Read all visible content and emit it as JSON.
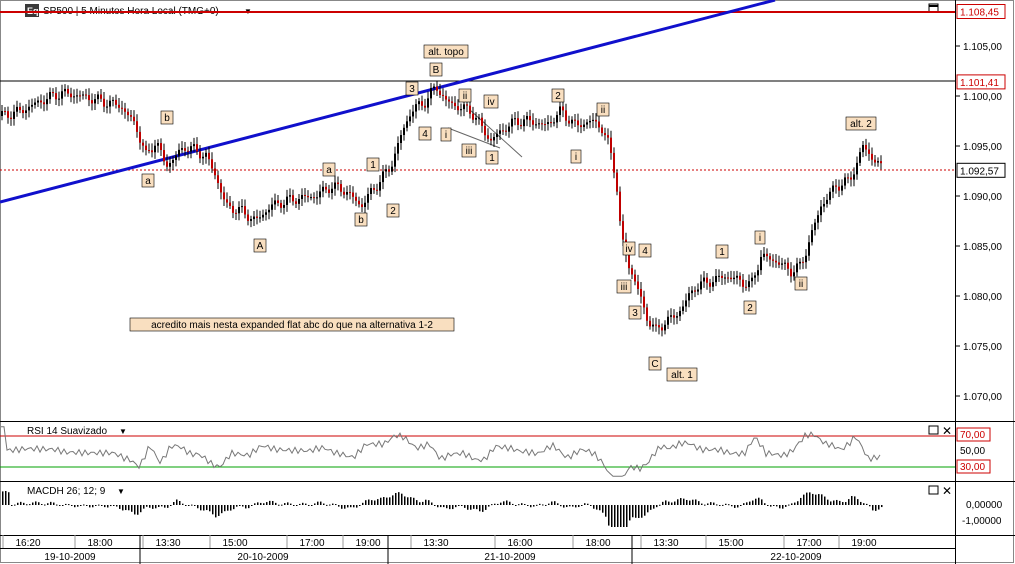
{
  "header": {
    "icon_label": "Eq",
    "title": "SP500 | 5 Minutos Hora Local (TMG+0)"
  },
  "chart_data": [
    {
      "type": "candlestick",
      "title": "SP500 | 5 Minutos Hora Local (TMG+0)",
      "y_ticks": [
        "1,105,00",
        "1,100,00",
        "1,095,00",
        "1,090,00",
        "1,085,00",
        "1,080,00",
        "1,075,00",
        "1,070,00"
      ],
      "y_tick_values": [
        1105,
        1100,
        1095,
        1090,
        1085,
        1080,
        1075,
        1070
      ],
      "ylim": [
        1068.5,
        1109.5
      ],
      "price_flags": [
        {
          "label": "1.108,45",
          "value": 1108.45,
          "color": "#cc0000"
        },
        {
          "label": "1.101,41",
          "value": 1101.41,
          "color": "#cc0000"
        },
        {
          "label": "1.092,57",
          "value": 1092.57,
          "color": "#000000"
        }
      ],
      "annotations": [
        "alt. topo",
        "B",
        "3",
        "4",
        "i",
        "ii",
        "iii",
        "iv",
        "1",
        "2",
        "ii",
        "i",
        "b",
        "a",
        "a",
        "1",
        "2",
        "b",
        "A",
        "iv",
        "4",
        "iii",
        "3",
        "C",
        "alt. 1",
        "1",
        "i",
        "2",
        "ii",
        "alt. 2",
        "acredito mais nesta expanded flat abc do que na alternativa 1-2"
      ],
      "price_path": [
        [
          0,
          1098
        ],
        [
          20,
          1098.5
        ],
        [
          40,
          1099.5
        ],
        [
          60,
          1100.3
        ],
        [
          80,
          1100
        ],
        [
          100,
          1099.5
        ],
        [
          120,
          1099
        ],
        [
          135,
          1097
        ],
        [
          145,
          1094
        ],
        [
          155,
          1095.5
        ],
        [
          165,
          1093
        ],
        [
          175,
          1094
        ],
        [
          185,
          1095
        ],
        [
          195,
          1094.5
        ],
        [
          205,
          1094
        ],
        [
          215,
          1092
        ],
        [
          225,
          1089
        ],
        [
          240,
          1088.5
        ],
        [
          255,
          1087.5
        ],
        [
          270,
          1089
        ],
        [
          285,
          1089.5
        ],
        [
          300,
          1089.8
        ],
        [
          315,
          1090
        ],
        [
          330,
          1091
        ],
        [
          345,
          1090.5
        ],
        [
          360,
          1089
        ],
        [
          375,
          1091
        ],
        [
          390,
          1093
        ],
        [
          400,
          1096
        ],
        [
          410,
          1098.5
        ],
        [
          425,
          1099.5
        ],
        [
          435,
          1101
        ],
        [
          445,
          1099.5
        ],
        [
          455,
          1099
        ],
        [
          470,
          1098.5
        ],
        [
          480,
          1097
        ],
        [
          490,
          1095.5
        ],
        [
          500,
          1096.5
        ],
        [
          515,
          1097.5
        ],
        [
          530,
          1097.5
        ],
        [
          545,
          1097
        ],
        [
          560,
          1098.5
        ],
        [
          575,
          1097
        ],
        [
          590,
          1097.5
        ],
        [
          600,
          1097
        ],
        [
          608,
          1095
        ],
        [
          615,
          1092
        ],
        [
          620,
          1086
        ],
        [
          628,
          1083
        ],
        [
          636,
          1081
        ],
        [
          645,
          1078
        ],
        [
          655,
          1076.5
        ],
        [
          665,
          1077.5
        ],
        [
          675,
          1078
        ],
        [
          685,
          1079.5
        ],
        [
          695,
          1081
        ],
        [
          710,
          1081.5
        ],
        [
          725,
          1082
        ],
        [
          740,
          1081.5
        ],
        [
          750,
          1081
        ],
        [
          760,
          1084
        ],
        [
          775,
          1083.5
        ],
        [
          790,
          1082.5
        ],
        [
          800,
          1083
        ],
        [
          810,
          1086
        ],
        [
          820,
          1089
        ],
        [
          835,
          1091
        ],
        [
          848,
          1091.5
        ],
        [
          855,
          1093
        ],
        [
          862,
          1095
        ],
        [
          870,
          1094
        ],
        [
          882,
          1092.6
        ]
      ]
    },
    {
      "type": "line",
      "title": "RSI 14 Suavizado",
      "levels": [
        70,
        50,
        30
      ],
      "level_labels": [
        "70,00",
        "50,00",
        "30,00"
      ],
      "ylim": [
        0,
        100
      ]
    },
    {
      "type": "bar",
      "title": "MACDH 26; 12; 9",
      "y_ticks": [
        "0,00000",
        "-1,00000"
      ],
      "y_tick_values": [
        0,
        -1
      ]
    }
  ],
  "x_axis": {
    "time_labels": [
      "16:20",
      "18:00",
      "13:30",
      "15:00",
      "17:00",
      "19:00",
      "13:30",
      "16:00",
      "18:00",
      "13:30",
      "15:00",
      "17:00",
      "19:00"
    ],
    "date_labels": [
      "19-10-2009",
      "20-10-2009",
      "21-10-2009",
      "22-10-2009"
    ]
  },
  "rsi_header": "RSI 14 Suavizado",
  "macd_header": "MACDH 26; 12; 9"
}
